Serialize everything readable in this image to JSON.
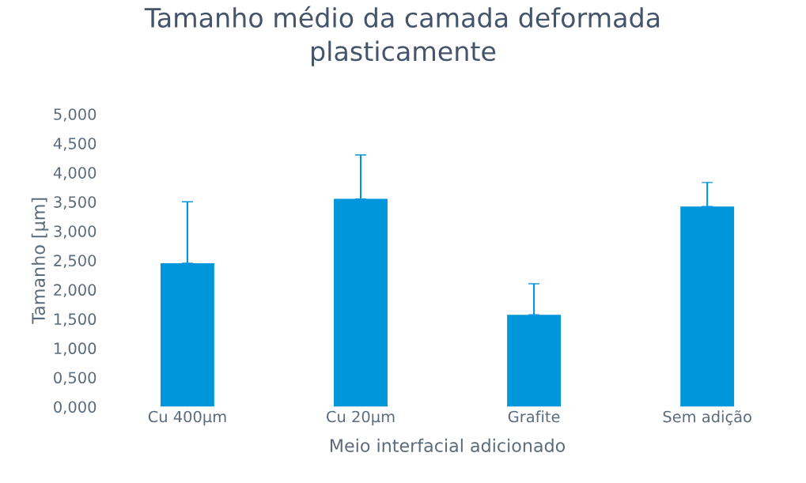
{
  "chart_data": {
    "type": "bar",
    "title": "Tamanho médio da camada deformada\nplasticamente",
    "xlabel": "Meio interfacial adicionado",
    "ylabel": "Tamanho [µm]",
    "categories": [
      "Cu 400µm",
      "Cu 20µm",
      "Grafite",
      "Sem adição"
    ],
    "values": [
      2.45,
      3.55,
      1.57,
      3.42
    ],
    "color": "#0096db",
    "errors": [
      [
        2.45,
        3.5
      ],
      [
        3.55,
        4.3
      ],
      [
        1.57,
        2.1
      ],
      [
        3.42,
        3.83
      ]
    ],
    "ylim": [
      0,
      5
    ],
    "yticks": [
      {
        "value": 0,
        "label": "0,000"
      },
      {
        "value": 0.5,
        "label": "0,500"
      },
      {
        "value": 1,
        "label": "1,000"
      },
      {
        "value": 1.5,
        "label": "1,500"
      },
      {
        "value": 2,
        "label": "2,000"
      },
      {
        "value": 2.5,
        "label": "2,500"
      },
      {
        "value": 3,
        "label": "3,000"
      },
      {
        "value": 3.5,
        "label": "3,500"
      },
      {
        "value": 4,
        "label": "4,000"
      },
      {
        "value": 4.5,
        "label": "4,500"
      },
      {
        "value": 5,
        "label": "5,000"
      }
    ],
    "grid": false
  }
}
